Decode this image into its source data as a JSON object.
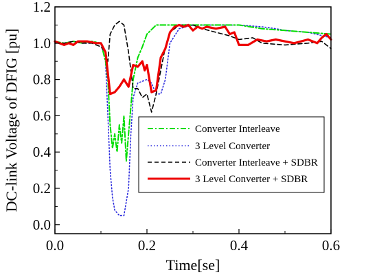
{
  "chart_data": {
    "type": "line",
    "xlabel": "Time[se]",
    "ylabel": "DC-link Voltage of DFIG [pu]",
    "xlim": [
      0.0,
      0.6
    ],
    "ylim": [
      -0.05,
      1.2
    ],
    "x_ticks": [
      "0.0",
      "0.2",
      "0.4",
      "0.6"
    ],
    "y_ticks": [
      "0.0",
      "0.2",
      "0.4",
      "0.6",
      "0.8",
      "1.0",
      "1.2"
    ],
    "x_tick_values": [
      0.0,
      0.2,
      0.4,
      0.6
    ],
    "y_tick_values": [
      0.0,
      0.2,
      0.4,
      0.6,
      0.8,
      1.0,
      1.2
    ],
    "grid": false,
    "legend_position": "right",
    "series": [
      {
        "name": "Converter Interleave",
        "color": "#00dd00",
        "style": "dashdot",
        "x": [
          0.0,
          0.02,
          0.04,
          0.06,
          0.08,
          0.1,
          0.11,
          0.115,
          0.12,
          0.125,
          0.13,
          0.135,
          0.14,
          0.145,
          0.15,
          0.155,
          0.16,
          0.165,
          0.17,
          0.18,
          0.19,
          0.2,
          0.22,
          0.25,
          0.28,
          0.3,
          0.35,
          0.4,
          0.45,
          0.5,
          0.55,
          0.6
        ],
        "y": [
          1.01,
          1.0,
          1.01,
          1.0,
          1.01,
          1.0,
          0.9,
          0.8,
          0.55,
          0.42,
          0.5,
          0.4,
          0.55,
          0.45,
          0.6,
          0.35,
          0.5,
          0.65,
          0.8,
          0.92,
          0.98,
          1.05,
          1.1,
          1.1,
          1.1,
          1.1,
          1.1,
          1.1,
          1.08,
          1.07,
          1.06,
          1.05
        ]
      },
      {
        "name": "3 Level Converter",
        "color": "#2b2bdd",
        "style": "dotted",
        "x": [
          0.0,
          0.02,
          0.04,
          0.06,
          0.08,
          0.1,
          0.11,
          0.115,
          0.12,
          0.125,
          0.13,
          0.14,
          0.15,
          0.16,
          0.165,
          0.17,
          0.18,
          0.2,
          0.21,
          0.22,
          0.23,
          0.24,
          0.25,
          0.27,
          0.3,
          0.35,
          0.4,
          0.45,
          0.48,
          0.5,
          0.55,
          0.6
        ],
        "y": [
          1.0,
          1.0,
          1.01,
          1.0,
          1.0,
          1.0,
          0.9,
          0.6,
          0.3,
          0.15,
          0.08,
          0.05,
          0.05,
          0.2,
          0.5,
          0.7,
          0.78,
          0.8,
          0.78,
          0.72,
          0.72,
          0.8,
          1.0,
          1.08,
          1.1,
          1.1,
          1.1,
          1.09,
          1.08,
          1.07,
          1.06,
          1.03
        ]
      },
      {
        "name": "Converter Interleave + SDBR",
        "color": "#000000",
        "style": "dashed",
        "x": [
          0.0,
          0.02,
          0.04,
          0.06,
          0.08,
          0.1,
          0.11,
          0.115,
          0.12,
          0.13,
          0.14,
          0.15,
          0.16,
          0.17,
          0.18,
          0.19,
          0.2,
          0.21,
          0.22,
          0.23,
          0.24,
          0.25,
          0.27,
          0.3,
          0.32,
          0.35,
          0.38,
          0.4,
          0.43,
          0.45,
          0.5,
          0.55,
          0.58,
          0.6
        ],
        "y": [
          1.0,
          1.0,
          1.01,
          1.0,
          1.0,
          0.98,
          0.95,
          0.9,
          1.05,
          1.1,
          1.12,
          1.1,
          0.95,
          0.75,
          0.75,
          0.7,
          0.72,
          0.62,
          0.72,
          0.85,
          0.98,
          1.06,
          1.1,
          1.1,
          1.08,
          1.06,
          1.04,
          1.02,
          1.03,
          1.0,
          0.99,
          1.0,
          1.01,
          0.97
        ]
      },
      {
        "name": "3 Level Converter + SDBR",
        "color": "#ee0000",
        "style": "solid",
        "x": [
          0.0,
          0.02,
          0.03,
          0.04,
          0.05,
          0.07,
          0.09,
          0.1,
          0.11,
          0.12,
          0.13,
          0.14,
          0.15,
          0.16,
          0.17,
          0.18,
          0.19,
          0.195,
          0.2,
          0.21,
          0.22,
          0.23,
          0.24,
          0.25,
          0.26,
          0.27,
          0.28,
          0.29,
          0.3,
          0.31,
          0.32,
          0.33,
          0.35,
          0.37,
          0.38,
          0.39,
          0.4,
          0.42,
          0.44,
          0.46,
          0.48,
          0.5,
          0.52,
          0.55,
          0.57,
          0.58,
          0.59,
          0.6
        ],
        "y": [
          1.01,
          0.99,
          1.0,
          0.99,
          1.01,
          1.01,
          1.0,
          1.0,
          0.95,
          0.72,
          0.73,
          0.76,
          0.8,
          0.76,
          0.88,
          0.87,
          0.9,
          0.85,
          0.88,
          0.73,
          0.74,
          0.92,
          0.97,
          1.06,
          1.09,
          1.1,
          1.09,
          1.1,
          1.07,
          1.09,
          1.08,
          1.09,
          1.08,
          1.09,
          1.05,
          1.06,
          0.99,
          0.99,
          1.02,
          1.01,
          1.02,
          1.01,
          1.0,
          1.02,
          1.0,
          1.03,
          1.05,
          1.02
        ]
      }
    ]
  }
}
